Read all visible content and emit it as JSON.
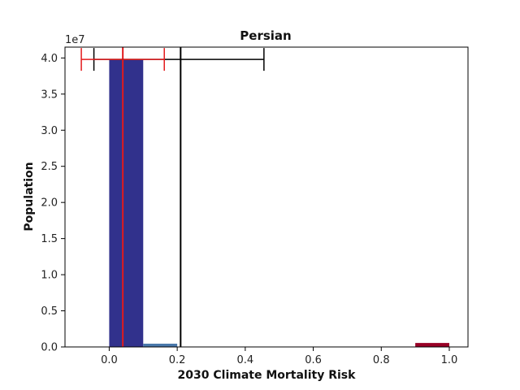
{
  "chart_data": {
    "type": "bar",
    "title": "Persian",
    "xlabel": "2030 Climate Mortality Risk",
    "ylabel": "Population",
    "y_scale_label": "1e7",
    "y_multiplier": 10000000,
    "xlim": [
      -0.13,
      1.055
    ],
    "ylim": [
      0,
      4.15
    ],
    "x_ticks": [
      0.0,
      0.2,
      0.4,
      0.6,
      0.8,
      1.0
    ],
    "x_tick_labels": [
      "0.0",
      "0.2",
      "0.4",
      "0.6",
      "0.8",
      "1.0"
    ],
    "y_ticks": [
      0.0,
      0.5,
      1.0,
      1.5,
      2.0,
      2.5,
      3.0,
      3.5,
      4.0
    ],
    "y_tick_labels": [
      "0.0",
      "0.5",
      "1.0",
      "1.5",
      "2.0",
      "2.5",
      "3.0",
      "3.5",
      "4.0"
    ],
    "grid": false,
    "bars": [
      {
        "x0": 0.0,
        "x1": 0.1,
        "value": 3.98,
        "color": "#31318c"
      },
      {
        "x0": 0.1,
        "x1": 0.2,
        "value": 0.045,
        "color": "#4a78ab"
      },
      {
        "x0": 0.9,
        "x1": 1.0,
        "value": 0.055,
        "color": "#980026"
      }
    ],
    "vlines": [
      {
        "x": 0.21,
        "color": "#000000"
      },
      {
        "x": 0.04,
        "color": "#e31a1c"
      }
    ],
    "errorbars": [
      {
        "center": 0.21,
        "low": -0.045,
        "high": 0.455,
        "y": 3.98,
        "color": "#000000"
      },
      {
        "center": 0.04,
        "low": -0.082,
        "high": 0.162,
        "y": 3.98,
        "color": "#e31a1c"
      }
    ]
  }
}
